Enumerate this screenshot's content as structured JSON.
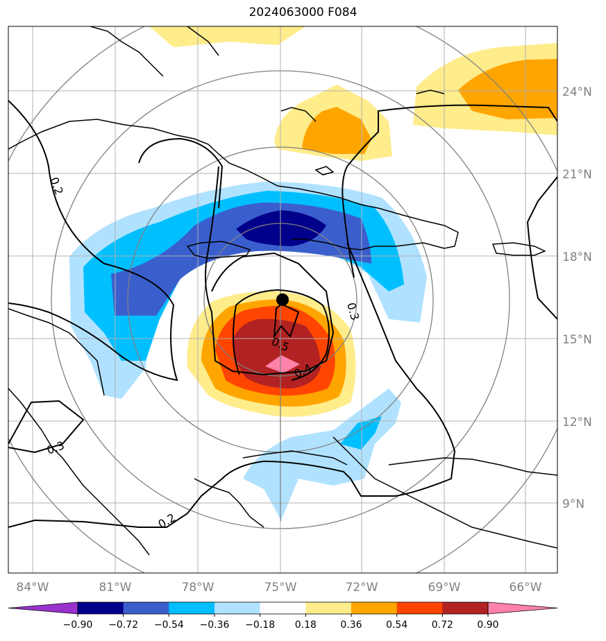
{
  "title": "2024063000 F084",
  "lat_labels": [
    "24°N",
    "21°N",
    "18°N",
    "15°N",
    "12°N",
    "9°N"
  ],
  "lon_labels": [
    "84°W",
    "81°W",
    "78°W",
    "75°W",
    "72°W",
    "69°W",
    "66°W"
  ],
  "colorbar": {
    "ticks": [
      "−0.90",
      "−0.72",
      "−0.54",
      "−0.36",
      "−0.18",
      "0.18",
      "0.36",
      "0.54",
      "0.72",
      "0.90"
    ],
    "colors": [
      "#9932cc",
      "#00008b",
      "#3a5fcd",
      "#00bfff",
      "#b0e2ff",
      "#ffffff",
      "#ffec8b",
      "#ffa500",
      "#ff4500",
      "#b22222",
      "#ff82ab"
    ]
  },
  "contour_labels": [
    "0.2",
    "0.3",
    "0.5",
    "0.4",
    "0.3",
    "0.2"
  ],
  "storm_center": {
    "lon": "75°W",
    "lat": "16.3°N"
  }
}
